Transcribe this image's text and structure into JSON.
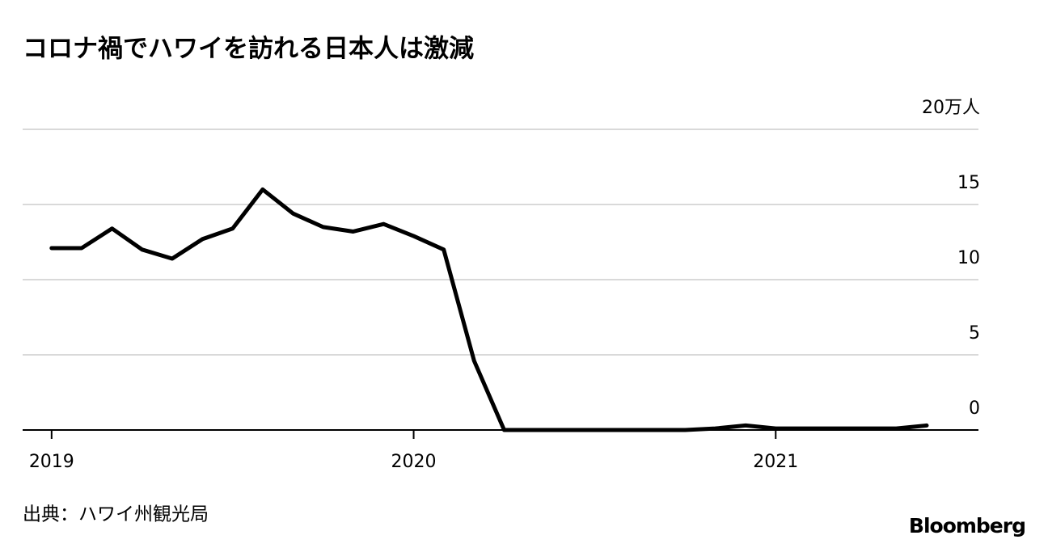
{
  "chart_data": {
    "type": "line",
    "title": "コロナ禍でハワイを訪れる日本人は激減",
    "source": "出典：ハワイ州観光局",
    "logo": "Bloomberg",
    "x": [
      2019,
      2019.083,
      2019.167,
      2019.25,
      2019.333,
      2019.417,
      2019.5,
      2019.583,
      2019.667,
      2019.75,
      2019.833,
      2019.917,
      2020,
      2020.083,
      2020.167,
      2020.25,
      2020.333,
      2020.417,
      2020.5,
      2020.583,
      2020.667,
      2020.75,
      2020.833,
      2020.917,
      2021,
      2021.083,
      2021.167,
      2021.25,
      2021.333,
      2021.417
    ],
    "series": [
      {
        "color": "#000000",
        "values": [
          12.1,
          12.1,
          13.4,
          12.0,
          11.4,
          12.7,
          13.4,
          16.0,
          14.4,
          13.5,
          13.2,
          13.7,
          12.9,
          12.0,
          4.6,
          0,
          0,
          0,
          0,
          0,
          0,
          0,
          0.1,
          0.3,
          0.1,
          0.1,
          0.1,
          0.1,
          0.1,
          0.3
        ]
      }
    ],
    "xlim": [
      2018.92,
      2021.56
    ],
    "xticks": [
      2019,
      2020,
      2021
    ],
    "ylim": [
      0,
      20
    ],
    "yticks": [
      0,
      5,
      10,
      15,
      {
        "value": 20,
        "label": "20万人"
      }
    ],
    "grid": true
  }
}
